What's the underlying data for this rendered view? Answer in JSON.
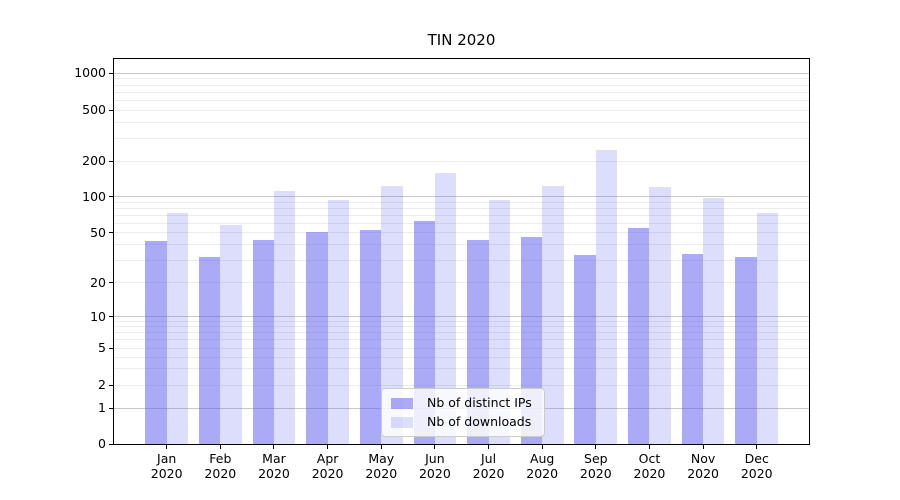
{
  "title": "TIN 2020",
  "colors": {
    "bar_base": "#5555ee",
    "ips_fill": "rgba(85,85,238,0.5)",
    "downloads_fill": "rgba(85,85,238,0.2)",
    "grid_major": "#c8c8c8",
    "grid_minor": "#ececec",
    "axis": "#000000",
    "text": "#000000",
    "legend_border": "#cccccc",
    "legend_bg": "rgba(255,255,255,0.8)"
  },
  "chart_data": {
    "type": "bar",
    "title": "TIN 2020",
    "categories": [
      "Jan",
      "Feb",
      "Mar",
      "Apr",
      "May",
      "Jun",
      "Jul",
      "Aug",
      "Sep",
      "Oct",
      "Nov",
      "Dec"
    ],
    "category_year_line": "2020",
    "series": [
      {
        "name": "Nb of distinct IPs",
        "values": [
          43,
          32,
          44,
          51,
          53,
          63,
          44,
          46,
          33,
          55,
          34,
          32
        ]
      },
      {
        "name": "Nb of downloads",
        "values": [
          73,
          58,
          112,
          94,
          122,
          157,
          93,
          122,
          245,
          121,
          97,
          73
        ]
      }
    ],
    "xlabel": "",
    "ylabel": "",
    "y_axis": {
      "scale": "symlog",
      "tick_values": [
        0,
        1,
        2,
        5,
        10,
        20,
        50,
        100,
        200,
        500,
        1000
      ],
      "tick_labels": [
        "0",
        "1",
        "2",
        "5",
        "10",
        "20",
        "50",
        "100",
        "200",
        "500",
        "1000"
      ],
      "minor_grid_values": [
        2,
        3,
        4,
        5,
        6,
        7,
        8,
        9,
        20,
        30,
        40,
        50,
        60,
        70,
        80,
        90,
        200,
        300,
        400,
        500,
        600,
        700,
        800,
        900
      ],
      "major_grid_values": [
        1,
        10,
        100,
        1000
      ],
      "ylim_top": 1300
    },
    "grid": "horizontal only, log minors",
    "legend_position": "lower center inside plot"
  }
}
